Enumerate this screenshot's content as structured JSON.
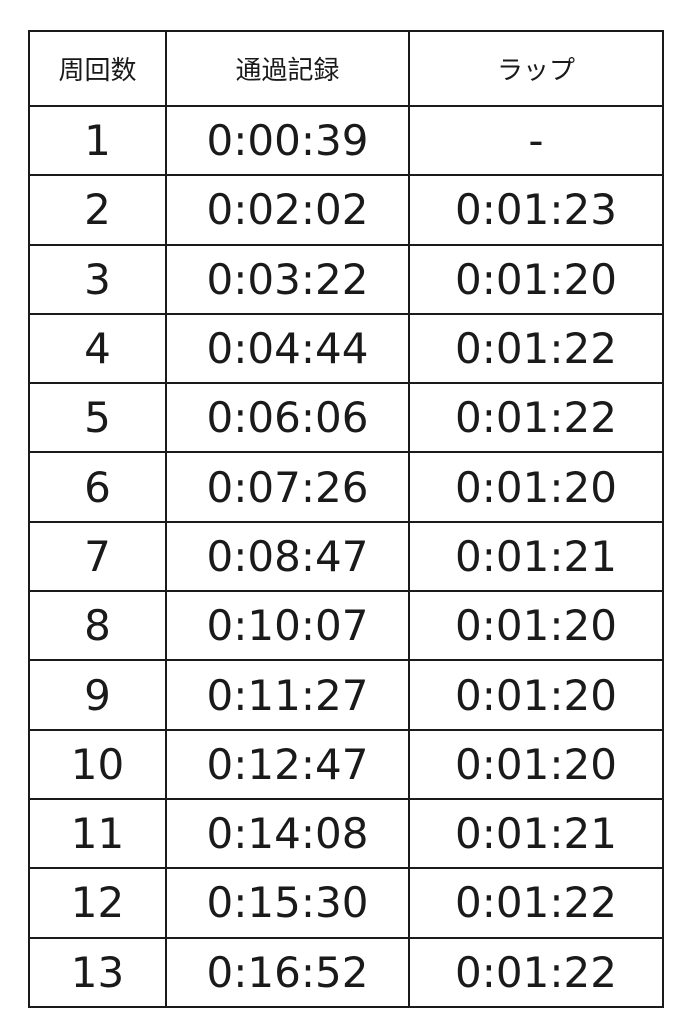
{
  "table": {
    "headers": [
      "周回数",
      "通過記録",
      "ラップ"
    ],
    "rows": [
      [
        "1",
        "0:00:39",
        "-"
      ],
      [
        "2",
        "0:02:02",
        "0:01:23"
      ],
      [
        "3",
        "0:03:22",
        "0:01:20"
      ],
      [
        "4",
        "0:04:44",
        "0:01:22"
      ],
      [
        "5",
        "0:06:06",
        "0:01:22"
      ],
      [
        "6",
        "0:07:26",
        "0:01:20"
      ],
      [
        "7",
        "0:08:47",
        "0:01:21"
      ],
      [
        "8",
        "0:10:07",
        "0:01:20"
      ],
      [
        "9",
        "0:11:27",
        "0:01:20"
      ],
      [
        "10",
        "0:12:47",
        "0:01:20"
      ],
      [
        "11",
        "0:14:08",
        "0:01:21"
      ],
      [
        "12",
        "0:15:30",
        "0:01:22"
      ],
      [
        "13",
        "0:16:52",
        "0:01:22"
      ]
    ]
  }
}
